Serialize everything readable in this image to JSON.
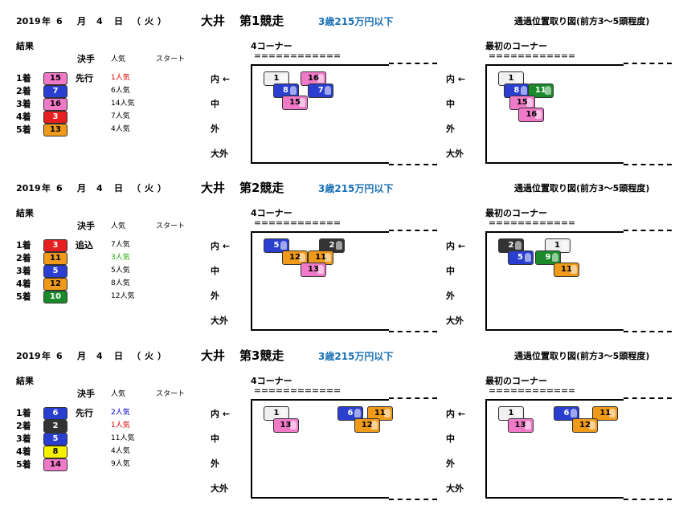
{
  "common": {
    "result_label": "結果",
    "col_kimete": "決手",
    "col_pop": "人気",
    "col_start": "スタート",
    "row_labels": [
      "内 ←",
      "中",
      "外",
      "大外"
    ],
    "dashes": "＝＝＝＝＝＝＝＝＝＝＝＝"
  },
  "races": [
    {
      "date_parts": [
        "2019",
        "年",
        "6",
        "月",
        "4",
        "日",
        "（",
        "火",
        "）"
      ],
      "venue": "大井",
      "race_title": "第1競走",
      "race_class": "3歳215万円以下",
      "diagram_heading": "通過位置取り図(前方3～5頭程度)",
      "corner_a_title": "4コーナー",
      "corner_b_title": "最初のコーナー",
      "results": [
        {
          "place": "1着",
          "num": "15",
          "color": "pink",
          "kimete": "先行",
          "pop": "1人気",
          "pop_color": "red"
        },
        {
          "place": "2着",
          "num": "7",
          "color": "blue",
          "kimete": "",
          "pop": "6人気",
          "pop_color": ""
        },
        {
          "place": "3着",
          "num": "16",
          "color": "pink",
          "kimete": "",
          "pop": "14人気",
          "pop_color": ""
        },
        {
          "place": "4着",
          "num": "3",
          "color": "red",
          "kimete": "",
          "pop": "7人気",
          "pop_color": ""
        },
        {
          "place": "5着",
          "num": "13",
          "color": "orange",
          "kimete": "",
          "pop": "4人気",
          "pop_color": ""
        }
      ],
      "corner_a": [
        {
          "num": "1",
          "color": "white",
          "col": 0,
          "row": 0
        },
        {
          "num": "16",
          "color": "pink",
          "col": 2,
          "row": 0
        },
        {
          "num": "8",
          "color": "blue",
          "col": 0.5,
          "row": 1
        },
        {
          "num": "7",
          "color": "blue",
          "col": 2.4,
          "row": 1
        },
        {
          "num": "15",
          "color": "pink",
          "col": 1,
          "row": 2
        }
      ],
      "corner_b": [
        {
          "num": "1",
          "color": "white",
          "col": 0,
          "row": 0
        },
        {
          "num": "8",
          "color": "blue",
          "col": 0.3,
          "row": 1
        },
        {
          "num": "11",
          "color": "green",
          "col": 1.6,
          "row": 1
        },
        {
          "num": "15",
          "color": "pink",
          "col": 0.6,
          "row": 2
        },
        {
          "num": "16",
          "color": "pink",
          "col": 1.1,
          "row": 3
        }
      ]
    },
    {
      "date_parts": [
        "2019",
        "年",
        "6",
        "月",
        "4",
        "日",
        "（",
        "火",
        "）"
      ],
      "venue": "大井",
      "race_title": "第2競走",
      "race_class": "3歳215万円以下",
      "diagram_heading": "通過位置取り図(前方3～5頭程度)",
      "corner_a_title": "4コーナー",
      "corner_b_title": "最初のコーナー",
      "results": [
        {
          "place": "1着",
          "num": "3",
          "color": "red",
          "kimete": "追込",
          "pop": "7人気",
          "pop_color": ""
        },
        {
          "place": "2着",
          "num": "11",
          "color": "orange",
          "kimete": "",
          "pop": "3人気",
          "pop_color": "green"
        },
        {
          "place": "3着",
          "num": "5",
          "color": "blue",
          "kimete": "",
          "pop": "5人気",
          "pop_color": ""
        },
        {
          "place": "4着",
          "num": "12",
          "color": "orange",
          "kimete": "",
          "pop": "8人気",
          "pop_color": ""
        },
        {
          "place": "5着",
          "num": "10",
          "color": "green",
          "kimete": "",
          "pop": "12人気",
          "pop_color": ""
        }
      ],
      "corner_a": [
        {
          "num": "5",
          "color": "blue",
          "col": 0,
          "row": 0
        },
        {
          "num": "2",
          "color": "black",
          "col": 3,
          "row": 0
        },
        {
          "num": "12",
          "color": "orange",
          "col": 1,
          "row": 1
        },
        {
          "num": "11",
          "color": "orange",
          "col": 2.4,
          "row": 1
        },
        {
          "num": "13",
          "color": "pink",
          "col": 2,
          "row": 2
        }
      ],
      "corner_b": [
        {
          "num": "2",
          "color": "black",
          "col": 0,
          "row": 0
        },
        {
          "num": "1",
          "color": "white",
          "col": 2.5,
          "row": 0
        },
        {
          "num": "5",
          "color": "blue",
          "col": 0.5,
          "row": 1
        },
        {
          "num": "9",
          "color": "green",
          "col": 2,
          "row": 1
        },
        {
          "num": "11",
          "color": "orange",
          "col": 3,
          "row": 2
        }
      ]
    },
    {
      "date_parts": [
        "2019",
        "年",
        "6",
        "月",
        "4",
        "日",
        "（",
        "火",
        "）"
      ],
      "venue": "大井",
      "race_title": "第3競走",
      "race_class": "3歳215万円以下",
      "diagram_heading": "通過位置取り図(前方3～5頭程度)",
      "corner_a_title": "4コーナー",
      "corner_b_title": "最初のコーナー",
      "results": [
        {
          "place": "1着",
          "num": "6",
          "color": "blue",
          "kimete": "先行",
          "pop": "2人気",
          "pop_color": "blue"
        },
        {
          "place": "2着",
          "num": "2",
          "color": "black",
          "kimete": "",
          "pop": "1人気",
          "pop_color": "red"
        },
        {
          "place": "3着",
          "num": "5",
          "color": "blue",
          "kimete": "",
          "pop": "11人気",
          "pop_color": ""
        },
        {
          "place": "4着",
          "num": "8",
          "color": "yellow",
          "kimete": "",
          "pop": "4人気",
          "pop_color": ""
        },
        {
          "place": "5着",
          "num": "14",
          "color": "pink",
          "kimete": "",
          "pop": "9人気",
          "pop_color": ""
        }
      ],
      "corner_a": [
        {
          "num": "1",
          "color": "white",
          "col": 0,
          "row": 0
        },
        {
          "num": "6",
          "color": "blue",
          "col": 4,
          "row": 0
        },
        {
          "num": "11",
          "color": "orange",
          "col": 5.6,
          "row": 0
        },
        {
          "num": "13",
          "color": "pink",
          "col": 0.5,
          "row": 1
        },
        {
          "num": "12",
          "color": "orange",
          "col": 4.9,
          "row": 1
        }
      ],
      "corner_b": [
        {
          "num": "1",
          "color": "white",
          "col": 0,
          "row": 0
        },
        {
          "num": "6",
          "color": "blue",
          "col": 3,
          "row": 0
        },
        {
          "num": "11",
          "color": "orange",
          "col": 5.1,
          "row": 0
        },
        {
          "num": "13",
          "color": "pink",
          "col": 0.5,
          "row": 1
        },
        {
          "num": "12",
          "color": "orange",
          "col": 4,
          "row": 1
        }
      ]
    }
  ]
}
